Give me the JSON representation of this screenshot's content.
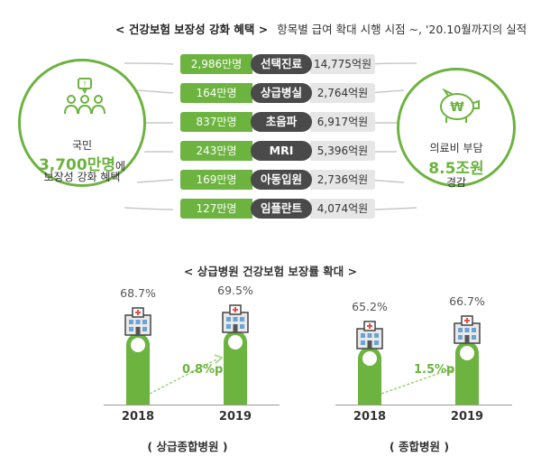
{
  "top": {
    "title_main": "< 건강보험 보장성 강화 혜택 >",
    "title_sub": "항목별 급여 확대 시행 시점 ~, '20.10월까지의 실적",
    "left_circle": {
      "line1": "국민",
      "highlight": "3,700만명",
      "suffix": "에",
      "line3": "보장성 강화 혜택",
      "icon": "people-speech-icon"
    },
    "right_circle": {
      "line1": "의료비 부담",
      "highlight": "8.5조원",
      "line3": "경감",
      "icon": "piggy-bank-won-icon"
    },
    "rows": [
      {
        "people": "2,986만명",
        "item": "선택진료",
        "amount": "14,775억원"
      },
      {
        "people": "164만명",
        "item": "상급병실",
        "amount": "2,764억원"
      },
      {
        "people": "837만명",
        "item": "초음파",
        "amount": "6,917억원"
      },
      {
        "people": "243만명",
        "item": "MRI",
        "amount": "5,396억원"
      },
      {
        "people": "169만명",
        "item": "아동입원",
        "amount": "2,736억원"
      },
      {
        "people": "127만명",
        "item": "임플란트",
        "amount": "4,074억원"
      }
    ]
  },
  "bottom": {
    "title": "< 상급병원 건강보험 보장률 확대 >"
  },
  "colors": {
    "accent": "#6cb33f",
    "dark": "#4a4a4a",
    "light": "#e6e6e6"
  },
  "chart_data": [
    {
      "type": "bar",
      "title": "",
      "caption": "( 상급종합병원 )",
      "categories": [
        "2018",
        "2019"
      ],
      "values": [
        68.7,
        69.5
      ],
      "value_labels": [
        "68.7%",
        "69.5%"
      ],
      "delta_label": "0.8%p",
      "icon": "hospital-icon"
    },
    {
      "type": "bar",
      "title": "",
      "caption": "( 종합병원 )",
      "categories": [
        "2018",
        "2019"
      ],
      "values": [
        65.2,
        66.7
      ],
      "value_labels": [
        "65.2%",
        "66.7%"
      ],
      "delta_label": "1.5%p",
      "icon": "hospital-icon"
    }
  ]
}
